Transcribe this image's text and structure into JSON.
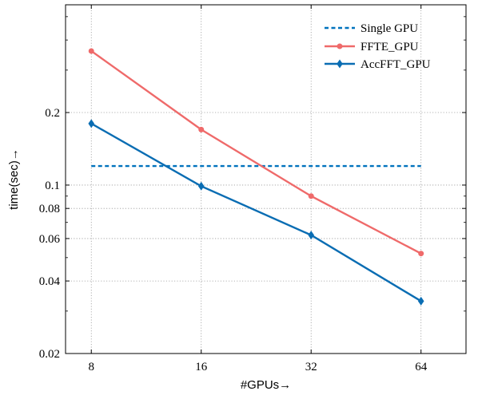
{
  "chart_data": {
    "type": "line",
    "title": "",
    "xlabel": "#GPUs→",
    "ylabel": "time(sec)→",
    "x": [
      8,
      16,
      32,
      64
    ],
    "x_tick_labels": [
      "8",
      "16",
      "32",
      "64"
    ],
    "x_scale": "log2",
    "xlim": [
      6.8,
      85
    ],
    "y_scale": "log",
    "ylim": [
      0.02,
      0.56
    ],
    "y_ticks": [
      0.02,
      0.04,
      0.06,
      0.08,
      0.1,
      0.2
    ],
    "y_tick_labels": [
      "0.02",
      "0.04",
      "0.06",
      "0.08",
      "0.1",
      "0.2"
    ],
    "grid": true,
    "legend_position": "top-right",
    "series": [
      {
        "name": "Single GPU",
        "style": "dashed",
        "marker": "none",
        "color": "#0072BD",
        "values": [
          0.12,
          0.12,
          0.12,
          0.12
        ]
      },
      {
        "name": "FFTE_GPU",
        "style": "solid",
        "marker": "circle",
        "color": "#EF6A6A",
        "values": [
          0.36,
          0.17,
          0.09,
          0.052
        ]
      },
      {
        "name": "AccFFT_GPU",
        "style": "solid",
        "marker": "diamond",
        "color": "#0A6DB3",
        "values": [
          0.18,
          0.099,
          0.062,
          0.033
        ]
      }
    ]
  }
}
